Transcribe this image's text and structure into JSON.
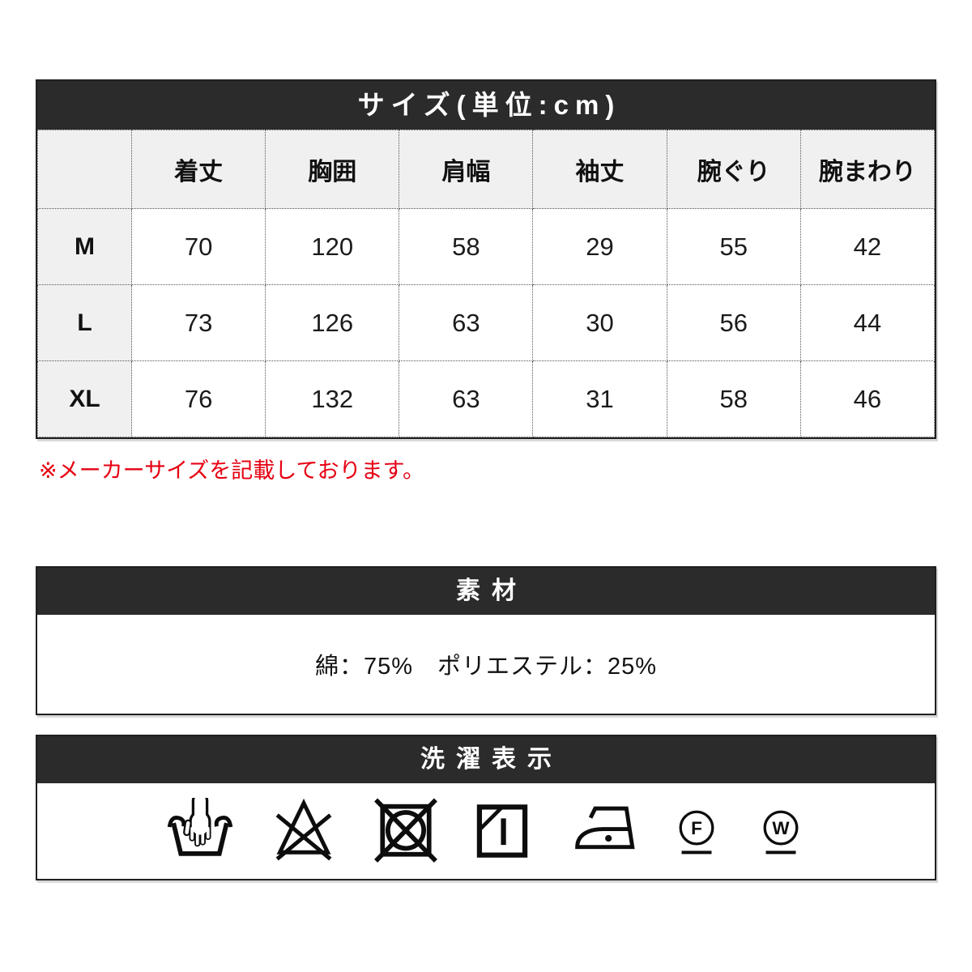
{
  "colors": {
    "header_bg": "#2b2b2b",
    "note_red": "#e60012",
    "cell_gray": "#f0f0f0"
  },
  "size_section": {
    "title": "サイズ(単位:cm)",
    "columns": [
      "着丈",
      "胸囲",
      "肩幅",
      "袖丈",
      "腕ぐり",
      "腕まわり"
    ],
    "rows": [
      {
        "size": "M",
        "values": [
          70,
          120,
          58,
          29,
          55,
          42
        ]
      },
      {
        "size": "L",
        "values": [
          73,
          126,
          63,
          30,
          56,
          44
        ]
      },
      {
        "size": "XL",
        "values": [
          76,
          132,
          63,
          31,
          58,
          46
        ]
      }
    ],
    "note": "※メーカーサイズを記載しております。"
  },
  "material_section": {
    "title": "素材",
    "text": "綿：75%　ポリエステル：25%"
  },
  "laundry_section": {
    "title": "洗濯表示",
    "icons": [
      "hand-wash-icon",
      "do-not-bleach-icon",
      "do-not-tumble-dry-icon",
      "line-dry-in-shade-icon",
      "iron-low-icon",
      "dry-clean-f-icon",
      "wet-clean-w-icon"
    ],
    "dry_clean_letter": "F",
    "wet_clean_letter": "W"
  }
}
